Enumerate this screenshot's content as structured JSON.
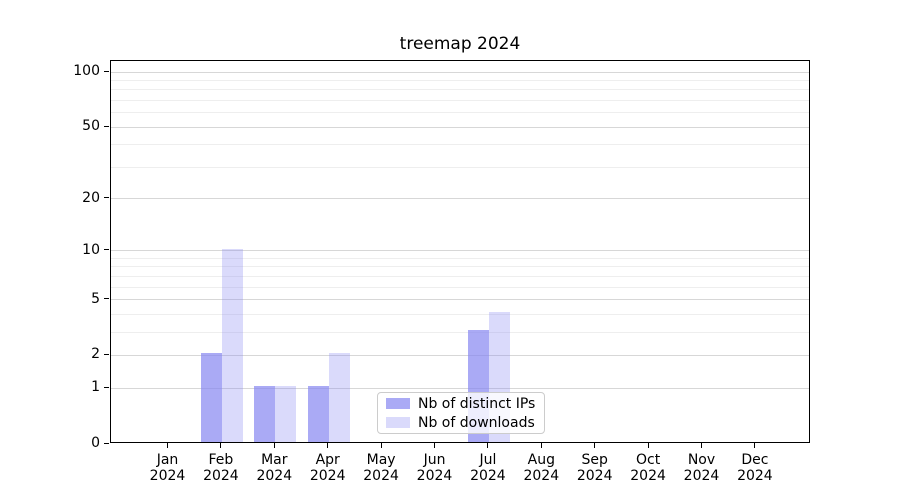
{
  "title": "treemap 2024",
  "chart_data": {
    "type": "bar",
    "title": "treemap 2024",
    "categories": [
      "Jan 2024",
      "Feb 2024",
      "Mar 2024",
      "Apr 2024",
      "May 2024",
      "Jun 2024",
      "Jul 2024",
      "Aug 2024",
      "Sep 2024",
      "Oct 2024",
      "Nov 2024",
      "Dec 2024"
    ],
    "series": [
      {
        "name": "Nb of distinct IPs",
        "values": [
          0,
          2,
          1,
          1,
          0,
          0,
          3,
          0,
          0,
          0,
          0,
          0
        ]
      },
      {
        "name": "Nb of downloads",
        "values": [
          0,
          10,
          1,
          2,
          0,
          0,
          4,
          0,
          0,
          0,
          0,
          0
        ]
      }
    ],
    "xlabel": "",
    "ylabel": "",
    "y_scale": "log10(1+v)",
    "y_ticks": [
      0,
      1,
      2,
      5,
      10,
      20,
      50,
      100
    ],
    "y_minor_ticks": [
      3,
      4,
      6,
      7,
      8,
      9,
      30,
      40,
      60,
      70,
      80,
      90
    ],
    "ylim": [
      0,
      115
    ],
    "grid": "horizontal, major and minor, drawn under semi-transparent bars",
    "legend_position": "lower center, inside axes"
  },
  "colors": {
    "bar_base": "#8686F1",
    "fill_distinct_ips": "rgba(134,134,241,0.70)",
    "fill_downloads": "rgba(134,134,241,0.30)",
    "grid_major": "#D7D7D7",
    "grid_minor": "#EEEEEE",
    "axis": "#000000",
    "legend_border": "#CCCCCC"
  },
  "legend": {
    "items": [
      {
        "label": "Nb of distinct IPs"
      },
      {
        "label": "Nb of downloads"
      }
    ]
  }
}
